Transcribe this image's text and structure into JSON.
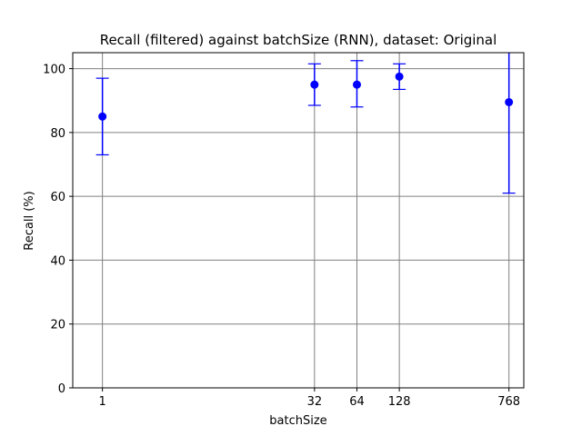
{
  "chart_data": {
    "type": "scatter",
    "title": "Recall (filtered) against batchSize (RNN), dataset: Original",
    "xlabel": "batchSize",
    "ylabel": "Recall (%)",
    "x_scale": "log2",
    "x_ticks": [
      1,
      32,
      64,
      128,
      768
    ],
    "x_tick_labels": [
      "1",
      "32",
      "64",
      "128",
      "768"
    ],
    "y_ticks": [
      0,
      20,
      40,
      60,
      80,
      100
    ],
    "y_tick_labels": [
      "0",
      "20",
      "40",
      "60",
      "80",
      "100"
    ],
    "ylim": [
      0,
      105
    ],
    "grid": true,
    "series": [
      {
        "color": "#0000ff",
        "points": [
          {
            "x": 1,
            "y": 85.0,
            "err_low": 73.0,
            "err_high": 97.0
          },
          {
            "x": 32,
            "y": 95.0,
            "err_low": 88.5,
            "err_high": 101.5
          },
          {
            "x": 64,
            "y": 95.0,
            "err_low": 88.0,
            "err_high": 102.5
          },
          {
            "x": 128,
            "y": 97.5,
            "err_low": 93.5,
            "err_high": 101.5
          },
          {
            "x": 768,
            "y": 89.5,
            "err_low": 61.0,
            "err_high": 118.0
          }
        ]
      }
    ],
    "grid_color": "#808080"
  }
}
